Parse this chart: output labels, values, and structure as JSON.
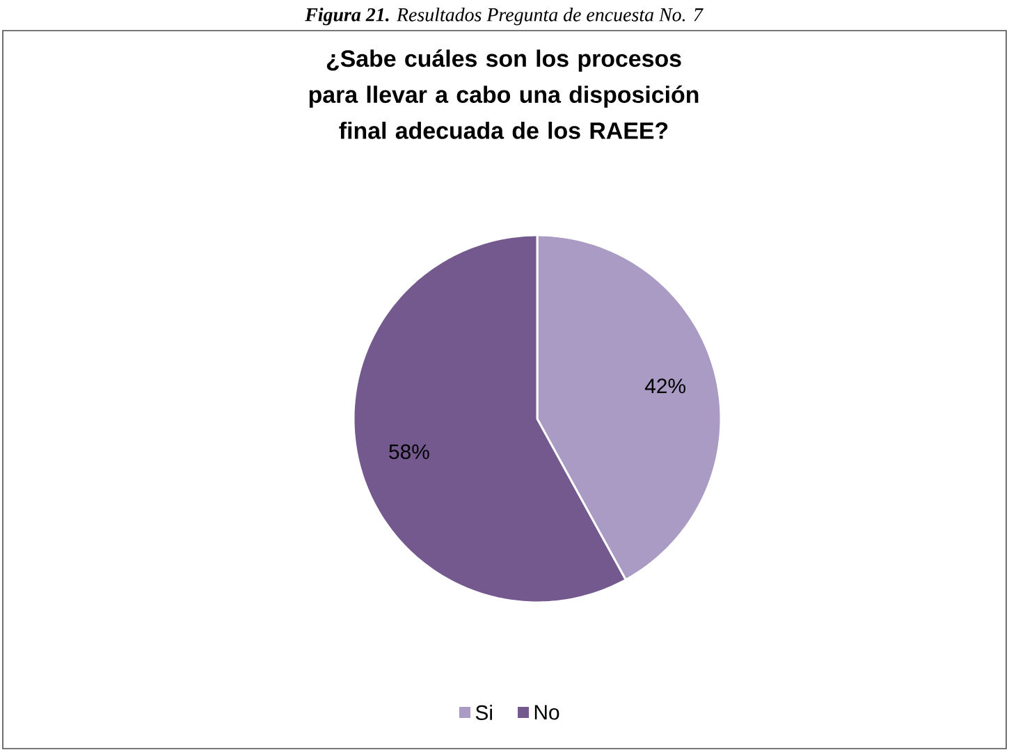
{
  "chart_data": {
    "type": "pie",
    "title": "¿Sabe cuáles son los procesos para llevar a cabo una disposición final adecuada de los RAEE?",
    "annotations": [
      "**Figura 21.** Resultados Pregunta de encuesta No. 7"
    ],
    "categories": [
      "Si",
      "No"
    ],
    "values": [
      42,
      58
    ],
    "colors": [
      "#a99bc3",
      "#74598f"
    ],
    "value_labels": [
      "42%",
      "58%"
    ],
    "legend": "bottom"
  }
}
